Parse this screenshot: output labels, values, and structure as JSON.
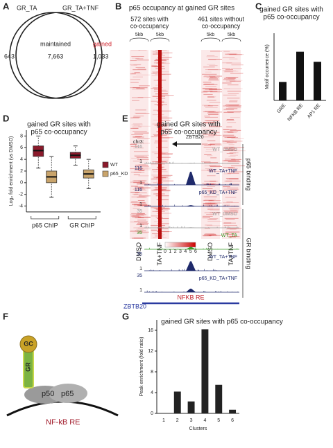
{
  "panel_labels": [
    "A",
    "B",
    "C",
    "D",
    "E",
    "F",
    "G"
  ],
  "venn": {
    "left_label": "GR_TA",
    "right_label": "GR_TA+TNF",
    "left_only": "643",
    "shared_label": "maintained",
    "shared": "7,663",
    "right_only_label": "gained",
    "right_only": "1,033"
  },
  "heatmap": {
    "title": "p65 occupancy at gained GR sites",
    "groups": [
      {
        "label": [
          "572 sites with",
          "co-occupancy"
        ],
        "window": [
          "5kb",
          "5kb"
        ],
        "conditions": [
          "DMSO",
          "TA+TNF"
        ]
      },
      {
        "label": [
          "461 sites without",
          "co-occupancy"
        ],
        "window": [
          "5kb",
          "5kb"
        ],
        "conditions": [
          "DMSO",
          "TA+TNF"
        ]
      }
    ],
    "gene": "ZBTB20",
    "colorbar_ticks": [
      0,
      1,
      2,
      3,
      4,
      5,
      6
    ]
  },
  "tracks": {
    "title": [
      "gained GR sites with",
      "p65 co-occupancy"
    ],
    "chrom": "chr3:",
    "items": [
      {
        "name": "WT_DMSO",
        "scale": 116,
        "min": 1,
        "color": "#999999",
        "peak": 4
      },
      {
        "name": "WT_TA+TNF",
        "scale": 116,
        "min": 1,
        "color": "#1f2a6b",
        "peak": 100
      },
      {
        "name": "p65_KD_TA+TNF",
        "scale": 116,
        "min": 1,
        "color": "#1f2a6b",
        "peak": 10
      },
      {
        "name": "WT_DMSO",
        "scale": 35,
        "min": 1,
        "color": "#999999",
        "peak": 2
      },
      {
        "name": "WT_TA",
        "scale": 35,
        "min": 1,
        "color": "#3a9a2a",
        "peak": 6
      },
      {
        "name": "WT_TA+TNF",
        "scale": 35,
        "min": 1,
        "color": "#1f2a6b",
        "peak": 22
      },
      {
        "name": "p65_KD_TA+TNF",
        "scale": 35,
        "min": 1,
        "color": "#1f2a6b",
        "peak": 9
      }
    ],
    "motif": "NFKB RE",
    "gene": "ZBTB20",
    "group_labels": [
      "p65 binding",
      "GR binding"
    ]
  },
  "model": {
    "cofactor": "GC",
    "receptor": "GR",
    "subunits": [
      "p50",
      "p65"
    ],
    "element": "NF-kB RE"
  },
  "chart_data": [
    {
      "type": "bar",
      "title": [
        "gained GR sites with",
        "p65 co-occupancy"
      ],
      "y_label": "Motif occurrence (%)",
      "categories": [
        "GRE",
        "NFKB RE",
        "AP1 RE"
      ],
      "values": [
        11,
        29,
        23
      ],
      "color": "#111111",
      "ylim": [
        0,
        40
      ]
    },
    {
      "type": "box",
      "title": [
        "gained GR sites with",
        "p65 co-occupancy"
      ],
      "y_label": "Log₂ fold enrichment (vs DMSO)",
      "categories": [
        "p65 ChIP",
        "GR ChIP"
      ],
      "ylim": [
        -5,
        9
      ],
      "yticks": [
        -4,
        -2,
        0,
        2,
        4,
        6,
        8
      ],
      "series": [
        {
          "name": "WT",
          "color": "#8b1a2b",
          "values": [
            {
              "min": 2.5,
              "q1": 4.5,
              "median": 5.5,
              "q3": 6.3,
              "max": 8
            },
            {
              "min": 3,
              "q1": 4.2,
              "median": 4.7,
              "q3": 5.2,
              "max": 6.3
            }
          ]
        },
        {
          "name": "p65_KD",
          "color": "#c9a46b",
          "values": [
            {
              "min": -2.5,
              "q1": 0,
              "median": 1,
              "q3": 2,
              "max": 4.5
            },
            {
              "min": -1,
              "q1": 0.8,
              "median": 1.5,
              "q3": 2.2,
              "max": 4
            }
          ]
        }
      ]
    },
    {
      "type": "bar",
      "title": [
        "gained GR sites with p65 co-occupancy"
      ],
      "y_label": "Peak enrichment (fold ratio)",
      "x_label": "Clusters",
      "categories": [
        "1",
        "2",
        "3",
        "4",
        "5",
        "6"
      ],
      "values": [
        0,
        4.2,
        2.3,
        16.2,
        5.5,
        0.7
      ],
      "color": "#222222",
      "ylim": [
        0,
        18
      ],
      "yticks": [
        0,
        4,
        8,
        12,
        16
      ]
    }
  ]
}
